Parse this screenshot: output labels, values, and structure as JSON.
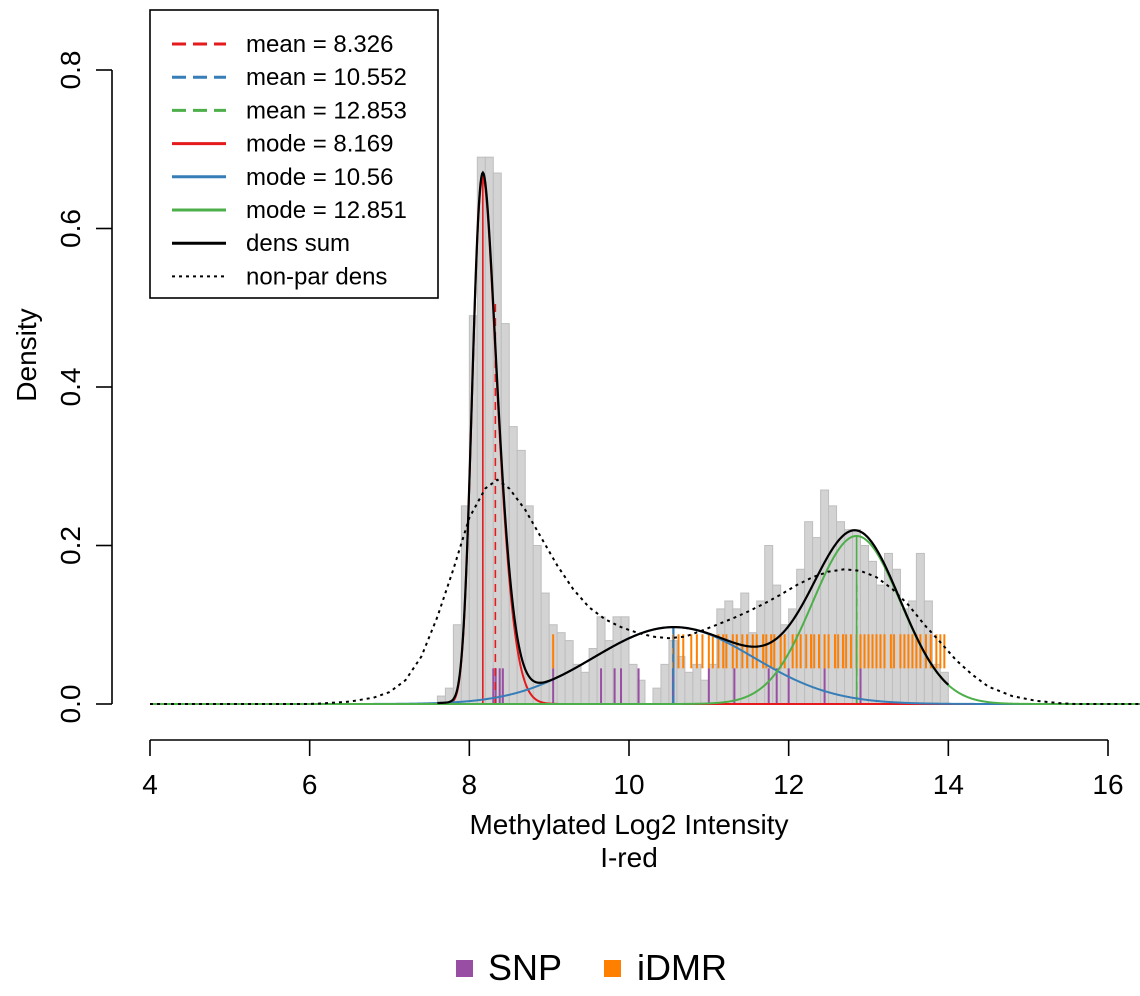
{
  "chart_data": {
    "type": "histogram",
    "xlabel": "Methylated Log2 Intensity",
    "subtitle": "I-red",
    "ylabel": "Density",
    "xlim": [
      4,
      16.4
    ],
    "ylim": [
      0,
      0.8
    ],
    "x_ticks": [
      4,
      6,
      8,
      10,
      12,
      14,
      16
    ],
    "y_ticks": [
      0.0,
      0.2,
      0.4,
      0.6,
      0.8
    ],
    "y_tick_labels": [
      "0.0",
      "0.2",
      "0.4",
      "0.6",
      "0.8"
    ],
    "histogram": {
      "bin_width": 0.1,
      "bins": [
        [
          7.6,
          7.7,
          0.01
        ],
        [
          7.7,
          7.8,
          0.02
        ],
        [
          7.8,
          7.9,
          0.1
        ],
        [
          7.9,
          8.0,
          0.25
        ],
        [
          8.0,
          8.1,
          0.49
        ],
        [
          8.1,
          8.2,
          0.69
        ],
        [
          8.2,
          8.3,
          0.69
        ],
        [
          8.3,
          8.4,
          0.67
        ],
        [
          8.4,
          8.5,
          0.48
        ],
        [
          8.5,
          8.6,
          0.35
        ],
        [
          8.6,
          8.7,
          0.32
        ],
        [
          8.7,
          8.8,
          0.25
        ],
        [
          8.8,
          8.9,
          0.2
        ],
        [
          8.9,
          9.0,
          0.14
        ],
        [
          9.0,
          9.1,
          0.1
        ],
        [
          9.1,
          9.2,
          0.09
        ],
        [
          9.2,
          9.3,
          0.08
        ],
        [
          9.3,
          9.4,
          0.05
        ],
        [
          9.4,
          9.5,
          0.04
        ],
        [
          9.5,
          9.6,
          0.07
        ],
        [
          9.6,
          9.7,
          0.11
        ],
        [
          9.7,
          9.8,
          0.08
        ],
        [
          9.8,
          9.9,
          0.11
        ],
        [
          9.9,
          10.0,
          0.11
        ],
        [
          10.0,
          10.1,
          0.05
        ],
        [
          10.1,
          10.2,
          0.03
        ],
        [
          10.2,
          10.3,
          0.0
        ],
        [
          10.3,
          10.4,
          0.02
        ],
        [
          10.4,
          10.5,
          0.05
        ],
        [
          10.5,
          10.6,
          0.08
        ],
        [
          10.6,
          10.7,
          0.06
        ],
        [
          10.7,
          10.8,
          0.04
        ],
        [
          10.8,
          10.9,
          0.05
        ],
        [
          10.9,
          11.0,
          0.03
        ],
        [
          11.0,
          11.1,
          0.05
        ],
        [
          11.1,
          11.2,
          0.12
        ],
        [
          11.2,
          11.3,
          0.13
        ],
        [
          11.3,
          11.4,
          0.12
        ],
        [
          11.4,
          11.5,
          0.14
        ],
        [
          11.5,
          11.6,
          0.09
        ],
        [
          11.6,
          11.7,
          0.13
        ],
        [
          11.7,
          11.8,
          0.2
        ],
        [
          11.8,
          11.9,
          0.15
        ],
        [
          11.9,
          12.0,
          0.1
        ],
        [
          12.0,
          12.1,
          0.12
        ],
        [
          12.1,
          12.2,
          0.17
        ],
        [
          12.2,
          12.3,
          0.23
        ],
        [
          12.3,
          12.4,
          0.21
        ],
        [
          12.4,
          12.5,
          0.27
        ],
        [
          12.5,
          12.6,
          0.25
        ],
        [
          12.6,
          12.7,
          0.23
        ],
        [
          12.7,
          12.8,
          0.22
        ],
        [
          12.8,
          12.9,
          0.22
        ],
        [
          12.9,
          13.0,
          0.2
        ],
        [
          13.0,
          13.1,
          0.18
        ],
        [
          13.1,
          13.2,
          0.15
        ],
        [
          13.2,
          13.3,
          0.19
        ],
        [
          13.3,
          13.4,
          0.17
        ],
        [
          13.4,
          13.5,
          0.12
        ],
        [
          13.5,
          13.6,
          0.13
        ],
        [
          13.6,
          13.7,
          0.19
        ],
        [
          13.7,
          13.8,
          0.13
        ],
        [
          13.8,
          13.9,
          0.05
        ],
        [
          13.9,
          14.0,
          0.04
        ]
      ]
    },
    "components": [
      {
        "name": "mode = 8.169",
        "color": "#e41a1c",
        "mean": 8.326,
        "mode": 8.169,
        "sd": 0.25,
        "skew": 2.5,
        "peak": 0.665
      },
      {
        "name": "mode = 10.56",
        "color": "#377eb8",
        "mean": 10.552,
        "mode": 10.56,
        "sd": 1.0,
        "skew": 0,
        "peak": 0.097
      },
      {
        "name": "mode = 12.851",
        "color": "#4daf4a",
        "mean": 12.853,
        "mode": 12.851,
        "sd": 0.55,
        "skew": 0,
        "peak": 0.212
      }
    ],
    "nonpar_density": {
      "points": [
        [
          4.0,
          0.0
        ],
        [
          6.0,
          0.0
        ],
        [
          6.2,
          0.001
        ],
        [
          6.5,
          0.003
        ],
        [
          6.8,
          0.008
        ],
        [
          7.0,
          0.015
        ],
        [
          7.2,
          0.03
        ],
        [
          7.4,
          0.06
        ],
        [
          7.6,
          0.11
        ],
        [
          7.8,
          0.17
        ],
        [
          8.0,
          0.235
        ],
        [
          8.2,
          0.272
        ],
        [
          8.35,
          0.283
        ],
        [
          8.5,
          0.272
        ],
        [
          8.7,
          0.245
        ],
        [
          8.9,
          0.21
        ],
        [
          9.1,
          0.175
        ],
        [
          9.3,
          0.145
        ],
        [
          9.5,
          0.122
        ],
        [
          9.7,
          0.107
        ],
        [
          9.9,
          0.097
        ],
        [
          10.1,
          0.09
        ],
        [
          10.3,
          0.085
        ],
        [
          10.5,
          0.083
        ],
        [
          10.7,
          0.085
        ],
        [
          10.9,
          0.092
        ],
        [
          11.1,
          0.1
        ],
        [
          11.3,
          0.108
        ],
        [
          11.5,
          0.117
        ],
        [
          11.7,
          0.127
        ],
        [
          11.9,
          0.138
        ],
        [
          12.1,
          0.15
        ],
        [
          12.3,
          0.16
        ],
        [
          12.5,
          0.167
        ],
        [
          12.7,
          0.17
        ],
        [
          12.9,
          0.168
        ],
        [
          13.1,
          0.16
        ],
        [
          13.3,
          0.145
        ],
        [
          13.5,
          0.125
        ],
        [
          13.7,
          0.1
        ],
        [
          13.9,
          0.078
        ],
        [
          14.1,
          0.055
        ],
        [
          14.3,
          0.037
        ],
        [
          14.5,
          0.022
        ],
        [
          14.8,
          0.01
        ],
        [
          15.1,
          0.004
        ],
        [
          15.4,
          0.001
        ],
        [
          15.6,
          0.0
        ],
        [
          16.4,
          0.0
        ]
      ]
    },
    "mean_lines": [
      {
        "label": "mean = 8.326",
        "x": 8.326,
        "color": "#e41a1c",
        "y_top": 0.51
      },
      {
        "label": "mean = 10.552",
        "x": 10.552,
        "color": "#377eb8",
        "y_top": 0.097
      },
      {
        "label": "mean = 12.853",
        "x": 12.853,
        "color": "#4daf4a",
        "y_top": 0.15
      }
    ],
    "mode_lines": [
      {
        "x": 8.169,
        "color": "#e41a1c",
        "y_top": 0.665
      },
      {
        "x": 10.56,
        "color": "#377eb8",
        "y_top": 0.097
      },
      {
        "x": 12.851,
        "color": "#4daf4a",
        "y_top": 0.212
      }
    ],
    "rug": {
      "SNP": {
        "color": "#984ea3",
        "y_range": [
          0.0,
          0.045
        ],
        "x": [
          8.3,
          8.33,
          8.38,
          8.42,
          9.05,
          9.65,
          9.82,
          9.9,
          10.12,
          10.55,
          11.0,
          11.32,
          11.75,
          11.85,
          12.0,
          12.45,
          12.9
        ]
      },
      "iDMR": {
        "color": "#ff7f00",
        "y_range": [
          0.045,
          0.088
        ],
        "x": [
          9.05,
          10.55,
          10.62,
          10.68,
          10.78,
          10.85,
          10.92,
          11.0,
          11.05,
          11.12,
          11.18,
          11.22,
          11.3,
          11.35,
          11.42,
          11.48,
          11.55,
          11.6,
          11.68,
          11.72,
          11.78,
          11.82,
          11.9,
          11.95,
          12.05,
          12.1,
          12.15,
          12.22,
          12.28,
          12.32,
          12.38,
          12.45,
          12.5,
          12.58,
          12.62,
          12.68,
          12.72,
          12.78,
          12.85,
          12.9,
          12.95,
          13.0,
          13.05,
          13.1,
          13.15,
          13.2,
          13.28,
          13.32,
          13.4,
          13.45,
          13.5,
          13.55,
          13.6,
          13.65,
          13.72,
          13.78,
          13.85,
          13.9,
          13.95
        ]
      }
    },
    "legend": {
      "position": "top-left",
      "entries": [
        {
          "label": "mean = 8.326",
          "color": "#e41a1c",
          "style": "dashed"
        },
        {
          "label": "mean = 10.552",
          "color": "#377eb8",
          "style": "dashed"
        },
        {
          "label": "mean = 12.853",
          "color": "#4daf4a",
          "style": "dashed"
        },
        {
          "label": "mode = 8.169",
          "color": "#e41a1c",
          "style": "solid"
        },
        {
          "label": "mode = 10.56",
          "color": "#377eb8",
          "style": "solid"
        },
        {
          "label": "mode = 12.851",
          "color": "#4daf4a",
          "style": "solid"
        },
        {
          "label": "dens sum",
          "color": "#000000",
          "style": "solid"
        },
        {
          "label": "non-par dens",
          "color": "#000000",
          "style": "dotted"
        }
      ]
    },
    "bottom_legend": {
      "position": "bottom-center",
      "entries": [
        {
          "label": "SNP",
          "color": "#984ea3"
        },
        {
          "label": "iDMR",
          "color": "#ff7f00"
        }
      ]
    },
    "colors": {
      "histogram_fill": "#d3d3d3",
      "histogram_border": "#bebebe"
    }
  }
}
